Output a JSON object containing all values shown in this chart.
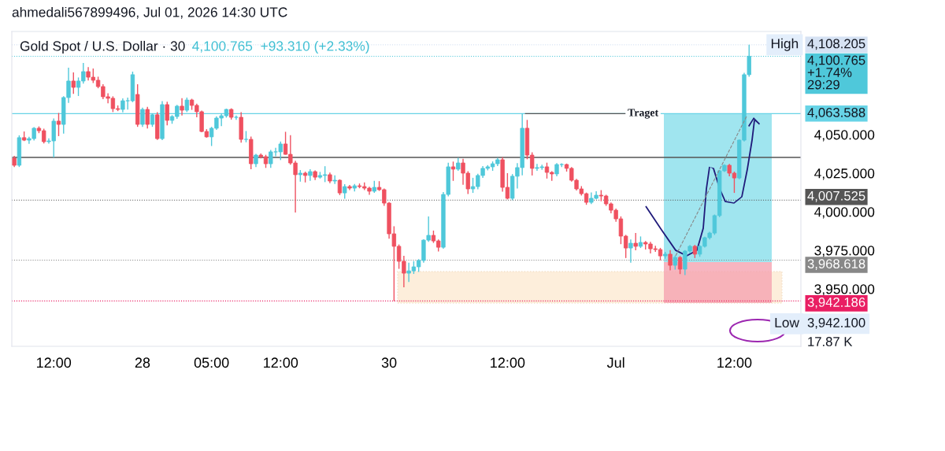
{
  "chart_data": {
    "type": "candlestick",
    "title": "Gold Spot / U.S. Dollar · 30",
    "subtitle": "4,100.765  +93.310 (+2.33%)",
    "categories": [
      null,
      null,
      null,
      null,
      null,
      null,
      null,
      null,
      "12:00",
      null,
      null,
      null,
      null,
      null,
      null,
      null,
      null,
      null,
      null,
      null,
      null,
      null,
      null,
      null,
      null,
      null,
      "28",
      null,
      null,
      null,
      null,
      null,
      null,
      null,
      null,
      null,
      null,
      null,
      null,
      null,
      "05:00",
      null,
      null,
      null,
      null,
      null,
      null,
      null,
      null,
      null,
      null,
      null,
      null,
      null,
      "12:00",
      null,
      null,
      null,
      null,
      null,
      null,
      null,
      null,
      null,
      null,
      null,
      null,
      null,
      null,
      null,
      null,
      null,
      null,
      null,
      null,
      null,
      "30",
      null,
      null,
      null,
      null,
      null,
      null,
      null,
      null,
      null,
      null,
      null,
      null,
      null,
      null,
      null,
      null,
      null,
      null,
      null,
      null,
      null,
      null,
      null,
      "12:00",
      null,
      null,
      null,
      null,
      null,
      null,
      null,
      null,
      null,
      null,
      null,
      null,
      null,
      null,
      null,
      null,
      null,
      null,
      null,
      null,
      null,
      "Jul",
      null,
      null,
      null,
      null,
      null,
      null,
      null,
      null,
      null,
      null,
      null,
      null,
      null,
      null,
      null,
      null,
      null,
      null,
      null,
      null,
      null,
      null,
      null,
      "12:00",
      null,
      null,
      null
    ],
    "colors": [
      "#ef5160",
      "#4fc8da",
      "#ef5160",
      "#4fc8da",
      "#4fc8da",
      "#ef5160",
      "#ef5160",
      "#4fc8da",
      "#4fc8da",
      "#ef5160",
      "#4fc8da",
      "#4fc8da",
      "#ef5160",
      "#4fc8da",
      "#4fc8da",
      "#ef5160",
      "#ef5160",
      "#ef5160",
      "#ef5160",
      "#ef5160",
      "#ef5160",
      "#ef5160",
      "#4fc8da",
      "#4fc8da",
      "#4fc8da",
      "#ef5160",
      "#4fc8da",
      "#ef5160",
      "#4fc8da",
      "#ef5160",
      "#4fc8da",
      "#ef5160",
      "#4fc8da",
      "#4fc8da",
      "#ef5160",
      "#4fc8da",
      "#ef5160",
      "#ef5160",
      "#ef5160",
      "#ef5160",
      "#4fc8da",
      "#4fc8da",
      "#4fc8da",
      "#4fc8da",
      "#ef5160",
      "#4fc8da",
      "#ef5160",
      "#4fc8da",
      "#ef5160",
      "#4fc8da",
      "#ef5160",
      "#ef5160",
      "#4fc8da",
      "#4fc8da",
      "#4fc8da",
      "#ef5160",
      "#ef5160",
      "#ef5160",
      "#4fc8da",
      "#ef5160",
      "#4fc8da",
      "#ef5160",
      "#4fc8da",
      "#4fc8da",
      "#ef5160",
      "#4fc8da",
      "#ef5160",
      "#4fc8da",
      "#ef5160",
      "#4fc8da",
      "#ef5160",
      "#ef5160",
      "#ef5160",
      "#4fc8da",
      "#ef5160",
      "#ef5160",
      "#ef5160",
      "#ef5160",
      "#ef5160",
      "#ef5160",
      "#4fc8da",
      "#4fc8da",
      "#4fc8da",
      "#4fc8da",
      "#4fc8da",
      "#ef5160",
      "#ef5160",
      "#4fc8da",
      "#4fc8da",
      "#ef5160",
      "#4fc8da",
      "#ef5160",
      "#ef5160",
      "#4fc8da",
      "#4fc8da",
      "#4fc8da",
      "#4fc8da",
      "#4fc8da",
      "#4fc8da",
      "#ef5160",
      "#ef5160",
      "#4fc8da",
      "#4fc8da",
      "#4fc8da",
      "#ef5160",
      "#ef5160",
      "#4fc8da",
      "#4fc8da",
      "#ef5160",
      "#ef5160",
      "#4fc8da",
      "#4fc8da",
      "#ef5160",
      "#ef5160",
      "#ef5160",
      "#ef5160",
      "#ef5160",
      "#4fc8da",
      "#4fc8da",
      "#ef5160",
      "#ef5160",
      "#ef5160",
      "#ef5160",
      "#ef5160",
      "#ef5160",
      "#4fc8da",
      "#ef5160",
      "#4fc8da",
      "#ef5160",
      "#ef5160",
      "#ef5160",
      "#ef5160",
      "#4fc8da",
      "#ef5160",
      "#4fc8da",
      "#ef5160",
      "#4fc8da",
      "#4fc8da",
      "#ef5160",
      "#4fc8da",
      "#4fc8da",
      "#4fc8da",
      "#4fc8da",
      "#4fc8da",
      "#4fc8da",
      "#ef5160",
      "#ef5160",
      "#4fc8da",
      "#4fc8da",
      "#4fc8da"
    ],
    "ohlc": [
      [
        4034.7,
        4036.2,
        4028.9,
        4030.1
      ],
      [
        4030.1,
        4049.5,
        4029.0,
        4048.0
      ],
      [
        4048.0,
        4052.0,
        4045.8,
        4046.4
      ],
      [
        4046.4,
        4048.6,
        4044.0,
        4047.4
      ],
      [
        4047.4,
        4054.8,
        4046.2,
        4054.1
      ],
      [
        4054.1,
        4055.3,
        4050.9,
        4052.5
      ],
      [
        4052.5,
        4053.8,
        4044.2,
        4045.4
      ],
      [
        4045.4,
        4047.6,
        4044.1,
        4045.9
      ],
      [
        4045.9,
        4060.5,
        4035.2,
        4058.7
      ],
      [
        4058.7,
        4064.0,
        4049.0,
        4056.6
      ],
      [
        4056.6,
        4074.9,
        4050.6,
        4074.0
      ],
      [
        4074.0,
        4093.3,
        4070.5,
        4084.7
      ],
      [
        4084.7,
        4090.3,
        4076.4,
        4080.6
      ],
      [
        4080.6,
        4087.0,
        4075.0,
        4084.7
      ],
      [
        4084.7,
        4096.4,
        4083.0,
        4090.8
      ],
      [
        4090.8,
        4093.7,
        4085.0,
        4087.2
      ],
      [
        4087.2,
        4092.8,
        4083.4,
        4085.2
      ],
      [
        4085.2,
        4087.5,
        4080.0,
        4081.1
      ],
      [
        4081.1,
        4082.6,
        4073.0,
        4074.5
      ],
      [
        4074.5,
        4076.8,
        4070.2,
        4073.5
      ],
      [
        4073.5,
        4074.8,
        4064.6,
        4066.8
      ],
      [
        4066.8,
        4068.9,
        4065.2,
        4066.3
      ],
      [
        4066.3,
        4073.5,
        4064.4,
        4071.9
      ],
      [
        4071.9,
        4074.0,
        4066.2,
        4071.9
      ],
      [
        4071.9,
        4090.8,
        4071.0,
        4088.8
      ],
      [
        4076.0,
        4082.6,
        4055.0,
        4056.6
      ],
      [
        4056.6,
        4067.5,
        4055.0,
        4066.3
      ],
      [
        4066.3,
        4068.0,
        4054.0,
        4056.6
      ],
      [
        4056.6,
        4063.7,
        4055.0,
        4062.8
      ],
      [
        4062.8,
        4064.5,
        4046.5,
        4047.4
      ],
      [
        4047.4,
        4071.7,
        4046.4,
        4069.4
      ],
      [
        4069.4,
        4071.3,
        4056.0,
        4059.2
      ],
      [
        4059.2,
        4062.6,
        4057.0,
        4061.7
      ],
      [
        4061.7,
        4069.2,
        4060.2,
        4068.4
      ],
      [
        4068.4,
        4073.6,
        4062.4,
        4065.8
      ],
      [
        4065.8,
        4074.0,
        4064.6,
        4072.4
      ],
      [
        4072.4,
        4073.2,
        4066.0,
        4068.9
      ],
      [
        4068.9,
        4070.0,
        4061.2,
        4064.8
      ],
      [
        4064.8,
        4065.6,
        4051.5,
        4052.0
      ],
      [
        4052.0,
        4053.5,
        4048.0,
        4048.5
      ],
      [
        4048.5,
        4055.0,
        4042.6,
        4054.1
      ],
      [
        4054.1,
        4061.8,
        4053.0,
        4060.7
      ],
      [
        4060.7,
        4063.7,
        4055.5,
        4062.2
      ],
      [
        4062.2,
        4066.8,
        4061.0,
        4066.3
      ],
      [
        4066.3,
        4067.0,
        4059.7,
        4061.2
      ],
      [
        4061.2,
        4062.4,
        4059.6,
        4061.2
      ],
      [
        4061.2,
        4064.5,
        4044.8,
        4046.9
      ],
      [
        4046.9,
        4052.3,
        4045.0,
        4046.9
      ],
      [
        4046.9,
        4048.7,
        4027.5,
        4031.1
      ],
      [
        4031.1,
        4037.5,
        4029.0,
        4036.7
      ],
      [
        4036.7,
        4037.7,
        4034.5,
        4035.7
      ],
      [
        4035.7,
        4036.9,
        4028.4,
        4031.1
      ],
      [
        4031.1,
        4040.0,
        4028.5,
        4038.8
      ],
      [
        4038.8,
        4041.5,
        4036.0,
        4038.8
      ],
      [
        4038.8,
        4045.5,
        4033.5,
        4043.9
      ],
      [
        4043.9,
        4051.8,
        4037.0,
        4037.2
      ],
      [
        4037.2,
        4049.6,
        4030.5,
        4031.6
      ],
      [
        4031.6,
        4033.0,
        3999.5,
        4024.0
      ],
      [
        4024.0,
        4027.0,
        4019.5,
        4025.0
      ],
      [
        4025.0,
        4026.0,
        4019.0,
        4023.5
      ],
      [
        4023.5,
        4027.5,
        4020.0,
        4026.0
      ],
      [
        4026.0,
        4026.8,
        4020.5,
        4022.4
      ],
      [
        4022.4,
        4025.8,
        4021.5,
        4023.5
      ],
      [
        4023.5,
        4029.5,
        4019.2,
        4024.0
      ],
      [
        4024.0,
        4025.4,
        4018.5,
        4019.9
      ],
      [
        4019.9,
        4023.6,
        4018.0,
        4020.4
      ],
      [
        4020.4,
        4021.0,
        4010.8,
        4012.2
      ],
      [
        4012.2,
        4017.8,
        4008.4,
        4016.3
      ],
      [
        4016.3,
        4017.3,
        4014.0,
        4015.3
      ],
      [
        4015.3,
        4018.0,
        4013.2,
        4016.8
      ],
      [
        4016.8,
        4018.3,
        4015.2,
        4016.3
      ],
      [
        4016.3,
        4019.0,
        4014.0,
        4015.3
      ],
      [
        4015.3,
        4016.2,
        4011.0,
        4013.3
      ],
      [
        4013.3,
        4020.0,
        4012.2,
        4015.8
      ],
      [
        4015.8,
        4019.8,
        4013.5,
        4014.3
      ],
      [
        4014.3,
        4015.0,
        4003.8,
        4005.6
      ],
      [
        4005.6,
        4006.3,
        3982.5,
        3985.7
      ],
      [
        3985.7,
        3990.6,
        3942.1,
        3977.6
      ],
      [
        3977.6,
        3978.8,
        3963.0,
        3967.9
      ],
      [
        3967.9,
        3971.5,
        3951.0,
        3960.2
      ],
      [
        3960.2,
        3967.0,
        3954.5,
        3961.7
      ],
      [
        3961.7,
        3968.0,
        3959.7,
        3964.3
      ],
      [
        3964.3,
        3969.3,
        3961.0,
        3968.4
      ],
      [
        3968.4,
        3982.2,
        3967.0,
        3981.6
      ],
      [
        3981.6,
        3996.9,
        3980.5,
        3984.7
      ],
      [
        3984.7,
        3987.8,
        3979.8,
        3981.1
      ],
      [
        3981.1,
        3982.0,
        3974.2,
        3977.0
      ],
      [
        3977.0,
        4012.8,
        3976.0,
        4011.2
      ],
      [
        4011.2,
        4031.8,
        4010.0,
        4029.1
      ],
      [
        4029.1,
        4032.5,
        4020.0,
        4027.6
      ],
      [
        4027.6,
        4035.0,
        4026.5,
        4031.6
      ],
      [
        4031.6,
        4034.3,
        4017.5,
        4025.0
      ],
      [
        4025.0,
        4026.3,
        4011.5,
        4014.8
      ],
      [
        4014.8,
        4022.0,
        4012.2,
        4016.3
      ],
      [
        4016.3,
        4024.6,
        4014.5,
        4023.5
      ],
      [
        4023.5,
        4029.6,
        4022.0,
        4028.1
      ],
      [
        4028.1,
        4030.2,
        4026.8,
        4029.1
      ],
      [
        4029.1,
        4032.6,
        4026.5,
        4031.1
      ],
      [
        4031.1,
        4035.0,
        4029.6,
        4033.7
      ],
      [
        4033.7,
        4035.3,
        4013.0,
        4015.8
      ],
      [
        4015.8,
        4025.0,
        4008.0,
        4008.7
      ],
      [
        4008.7,
        4024.4,
        4007.5,
        4023.0
      ],
      [
        4023.0,
        4031.5,
        4015.0,
        4028.6
      ],
      [
        4028.6,
        4063.6,
        4023.6,
        4054.1
      ],
      [
        4054.1,
        4059.5,
        4034.0,
        4036.7
      ],
      [
        4036.7,
        4038.5,
        4023.5,
        4028.1
      ],
      [
        4028.1,
        4031.0,
        4026.5,
        4028.6
      ],
      [
        4028.6,
        4030.5,
        4027.2,
        4029.1
      ],
      [
        4029.1,
        4031.8,
        4021.5,
        4025.5
      ],
      [
        4025.5,
        4026.3,
        4020.0,
        4024.5
      ],
      [
        4024.5,
        4031.5,
        4023.0,
        4030.6
      ],
      [
        4030.6,
        4031.4,
        4029.0,
        4030.6
      ],
      [
        4030.6,
        4031.2,
        4026.0,
        4028.1
      ],
      [
        4028.1,
        4029.0,
        4019.5,
        4020.4
      ],
      [
        4020.4,
        4021.3,
        4013.8,
        4014.8
      ],
      [
        4014.8,
        4016.6,
        4010.5,
        4011.7
      ],
      [
        4011.7,
        4012.4,
        4004.5,
        4006.1
      ],
      [
        4006.1,
        4012.5,
        4005.0,
        4008.7
      ],
      [
        4008.7,
        4013.3,
        4008.0,
        4010.7
      ],
      [
        4010.7,
        4014.0,
        4006.8,
        4010.2
      ],
      [
        4010.2,
        4011.0,
        4003.8,
        4005.1
      ],
      [
        4005.1,
        4006.0,
        3999.0,
        4001.0
      ],
      [
        4001.0,
        4002.0,
        3993.5,
        3995.4
      ],
      [
        3995.4,
        3997.0,
        3979.0,
        3984.2
      ],
      [
        3984.2,
        3985.0,
        3970.0,
        3976.5
      ],
      [
        3976.5,
        3982.0,
        3967.0,
        3979.6
      ],
      [
        3979.6,
        3986.2,
        3975.0,
        3977.6
      ],
      [
        3977.6,
        3984.0,
        3976.5,
        3980.1
      ],
      [
        3980.1,
        3981.0,
        3975.5,
        3979.1
      ],
      [
        3979.1,
        3980.5,
        3973.0,
        3976.0
      ],
      [
        3976.0,
        3978.0,
        3974.0,
        3975.5
      ],
      [
        3975.5,
        3976.6,
        3968.5,
        3971.4
      ],
      [
        3971.4,
        3974.0,
        3969.5,
        3972.5
      ],
      [
        3972.5,
        3975.2,
        3962.0,
        3965.3
      ],
      [
        3965.3,
        3971.5,
        3962.5,
        3970.4
      ],
      [
        3970.4,
        3971.3,
        3959.6,
        3962.8
      ],
      [
        3962.8,
        3975.2,
        3959.0,
        3974.5
      ],
      [
        3974.5,
        3978.5,
        3973.0,
        3977.6
      ],
      [
        3977.6,
        3978.5,
        3970.0,
        3972.5
      ],
      [
        3972.5,
        3978.3,
        3970.8,
        3977.6
      ],
      [
        3977.6,
        3983.8,
        3976.8,
        3983.2
      ],
      [
        3983.2,
        3987.0,
        3982.0,
        3986.2
      ],
      [
        3986.2,
        3998.2,
        3985.0,
        3997.5
      ],
      [
        3997.5,
        4027.0,
        3996.5,
        4026.5
      ],
      [
        4026.5,
        4030.7,
        4025.8,
        4030.1
      ],
      [
        4030.1,
        4031.0,
        4023.0,
        4025.0
      ],
      [
        4025.0,
        4026.0,
        4012.2,
        4021.9
      ],
      [
        4021.9,
        4046.8,
        4021.0,
        4046.4
      ],
      [
        4046.4,
        4090.0,
        4045.5,
        4088.8
      ],
      [
        4088.8,
        4108.205,
        4087.5,
        4100.765
      ]
    ],
    "ylim": [
      3912.8,
      4116.8
    ],
    "yticks": [
      {
        "value": 3950,
        "label": "3,950.000"
      },
      {
        "value": 3975,
        "label": "3,975.000"
      },
      {
        "value": 4000,
        "label": "4,000.000"
      },
      {
        "value": 4025,
        "label": "4,025.000"
      },
      {
        "value": 4050,
        "label": "4,050.000"
      }
    ],
    "ref_lines": [
      {
        "axis": "y",
        "value": 4035.2,
        "label": null,
        "color": "#555555",
        "line_style": "solid"
      },
      {
        "axis": "y",
        "value": 4108.205,
        "label": "4,108.205",
        "color": "#d6e2f3",
        "line_style": "dotted"
      },
      {
        "axis": "y",
        "value": 4100.765,
        "label": "4,100.765\n+1.74%\n29:29",
        "color": "#4fc8da",
        "line_style": "dotted"
      },
      {
        "axis": "y",
        "value": 4063.588,
        "label": "4,063.588",
        "color": "#67d3e6",
        "line_style": "solid"
      },
      {
        "axis": "y",
        "value": 4007.525,
        "label": "4,007.525",
        "color": "#555555",
        "line_style": "dotted"
      },
      {
        "axis": "y",
        "value": 3968.618,
        "label": "3,968.618",
        "color": "#888888",
        "line_style": "dotted"
      },
      {
        "axis": "y",
        "value": 3942.186,
        "label": "3,942.186",
        "color": "#e91e63",
        "line_style": "dotted"
      }
    ],
    "annotations": [
      "ahmedali567899496, Jul 01, 2026 14:30 UTC",
      {
        "text": "High",
        "y": 4108.205
      },
      {
        "text": "Traget",
        "y": 4063.588
      },
      "Low",
      "3,942.100",
      "17.87 K"
    ]
  }
}
